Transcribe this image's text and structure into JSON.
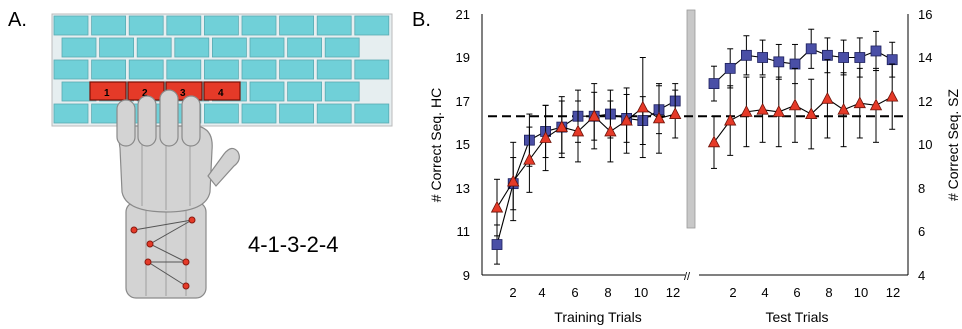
{
  "panel_a": {
    "label": "A.",
    "key_labels": [
      "1",
      "2",
      "3",
      "4"
    ],
    "sequence": "4-1-3-2-4",
    "colors": {
      "keyboard": "#70d0d8",
      "target_keys": "#e53a28",
      "hand": "#d3d3d3"
    }
  },
  "panel_b": {
    "label": "B.",
    "training_label": "Training Trials",
    "test_label": "Test Trials",
    "left_axis_label": "# Correct Seq. HC",
    "right_axis_label": "# Correct Seq. SZ",
    "axis_break": "//",
    "left_ticks": [
      "9",
      "11",
      "13",
      "15",
      "17",
      "19",
      "21"
    ],
    "right_ticks": [
      "4",
      "6",
      "8",
      "10",
      "12",
      "14",
      "16"
    ],
    "training_ticks": [
      "2",
      "4",
      "6",
      "8",
      "10",
      "12"
    ],
    "test_ticks": [
      "2",
      "4",
      "6",
      "8",
      "10",
      "12"
    ]
  },
  "chart_data": {
    "type": "line",
    "xlabel": [
      "Training Trials",
      "Test Trials"
    ],
    "ylabel_left": "# Correct Seq. HC",
    "ylabel_right": "# Correct Seq. SZ",
    "ylim_left": [
      9,
      21
    ],
    "ylim_right": [
      4,
      16
    ],
    "reference_line_hc": 16.3,
    "training": {
      "x": [
        1,
        2,
        3,
        4,
        5,
        6,
        7,
        8,
        9,
        10,
        11,
        12
      ],
      "series": [
        {
          "axis": "left",
          "color": "#4a4fa6",
          "marker": "square",
          "values": [
            10.4,
            13.2,
            15.2,
            15.6,
            15.8,
            16.3,
            16.3,
            16.4,
            16.2,
            16.1,
            16.6,
            17.0
          ],
          "errors": [
            0.9,
            1.2,
            1.2,
            1.2,
            1.2,
            1.2,
            1.1,
            1.1,
            1.1,
            1.1,
            1.1,
            0.8
          ]
        },
        {
          "axis": "right",
          "color": "#e53a28",
          "marker": "triangle",
          "values": [
            7.1,
            8.3,
            9.3,
            10.3,
            10.8,
            10.6,
            11.3,
            10.6,
            11.1,
            11.7,
            11.2,
            11.4
          ],
          "errors": [
            1.3,
            1.8,
            1.5,
            1.5,
            1.4,
            1.4,
            1.5,
            1.4,
            1.5,
            2.3,
            1.6,
            1.1
          ]
        }
      ]
    },
    "test": {
      "x": [
        1,
        2,
        3,
        4,
        5,
        6,
        7,
        8,
        9,
        10,
        11,
        12
      ],
      "series": [
        {
          "axis": "left",
          "color": "#4a4fa6",
          "marker": "square",
          "values": [
            17.8,
            18.5,
            19.1,
            19.0,
            18.8,
            18.7,
            19.4,
            19.1,
            19.0,
            19.0,
            19.3,
            18.9
          ],
          "errors": [
            0.8,
            0.9,
            0.9,
            0.8,
            0.8,
            0.9,
            0.9,
            0.8,
            0.8,
            0.9,
            0.9,
            0.8
          ]
        },
        {
          "axis": "right",
          "color": "#e53a28",
          "marker": "triangle",
          "values": [
            10.1,
            11.1,
            11.5,
            11.6,
            11.5,
            11.8,
            11.4,
            12.1,
            11.6,
            11.9,
            11.8,
            12.2
          ],
          "errors": [
            1.2,
            1.6,
            1.6,
            1.5,
            1.6,
            1.7,
            1.6,
            1.8,
            1.7,
            1.6,
            1.7,
            1.5
          ]
        }
      ]
    }
  }
}
